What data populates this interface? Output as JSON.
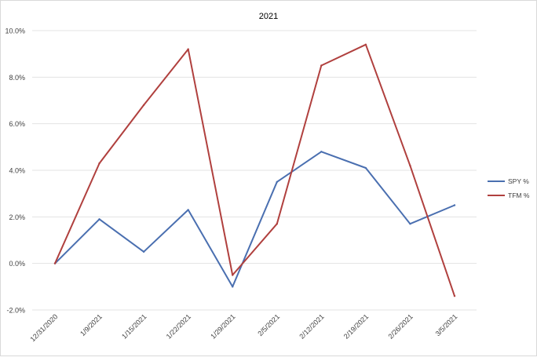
{
  "chart_data": {
    "type": "line",
    "title": "2021",
    "xlabel": "",
    "ylabel": "",
    "categories": [
      "12/31/2020",
      "1/9/2021",
      "1/15/2021",
      "1/22/2021",
      "1/29/2021",
      "2/5/2021",
      "2/12/2021",
      "2/19/2021",
      "2/26/2021",
      "3/5/2021"
    ],
    "y_tick_labels": [
      "10.0%",
      "8.0%",
      "6.0%",
      "4.0%",
      "2.0%",
      "0.0%",
      "-2.0%"
    ],
    "ylim": [
      -2.0,
      10.0
    ],
    "y_unit": "%",
    "grid": true,
    "legend_position": "right",
    "series": [
      {
        "name": "SPY %",
        "color": "#4a6fb0",
        "values": [
          0.0,
          1.9,
          0.5,
          2.3,
          -1.0,
          3.5,
          4.8,
          4.1,
          1.7,
          2.5
        ]
      },
      {
        "name": "TFM %",
        "color": "#b0403e",
        "values": [
          0.0,
          4.3,
          6.8,
          9.2,
          -0.5,
          1.7,
          8.5,
          9.4,
          4.2,
          -1.4
        ]
      }
    ]
  }
}
